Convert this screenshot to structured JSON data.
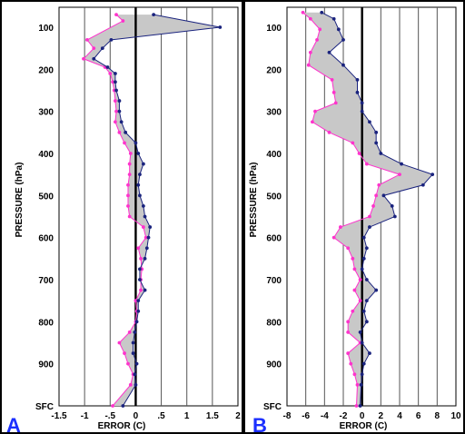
{
  "colors": {
    "series_magenta": "#ff33cc",
    "series_blue": "#1a237e",
    "fill": "#c8c8c8",
    "letter": "#1b2fff"
  },
  "chart_data": [
    {
      "panel_label": "A",
      "type": "line",
      "orientation": "vertical-profile",
      "xlabel": "ERROR (C)",
      "ylabel": "PRESSURE (hPa)",
      "xlim": [
        -1.5,
        2
      ],
      "ylim": [
        100,
        1000
      ],
      "y_reversed": true,
      "xticks": [
        "-1.5",
        "-1",
        "-.5",
        "0",
        ".5",
        "1",
        "1.5",
        "2"
      ],
      "yticks": [
        "100",
        "200",
        "300",
        "400",
        "500",
        "600",
        "700",
        "800",
        "900",
        "SFC"
      ],
      "grid": "vertical",
      "zero_line": true,
      "series": [
        {
          "color": "magenta",
          "y": [
            70,
            85,
            130,
            150,
            175,
            195,
            210,
            230,
            250,
            275,
            300,
            325,
            350,
            375,
            400,
            425,
            450,
            475,
            500,
            525,
            550,
            575,
            600,
            625,
            650,
            675,
            700,
            725,
            750,
            775,
            800,
            825,
            850,
            875,
            900,
            925,
            950,
            1000
          ],
          "x": [
            -0.38,
            -0.25,
            -0.95,
            -0.82,
            -1.02,
            -0.6,
            -0.5,
            -0.45,
            -0.42,
            -0.4,
            -0.38,
            -0.4,
            -0.32,
            -0.22,
            -0.1,
            -0.12,
            -0.12,
            -0.15,
            -0.15,
            -0.15,
            -0.12,
            0.15,
            0.2,
            0.05,
            0.1,
            0.12,
            0.1,
            0.1,
            0.0,
            0.02,
            0.0,
            -0.12,
            -0.32,
            -0.22,
            -0.15,
            -0.05,
            -0.1,
            -0.45
          ]
        },
        {
          "color": "blue",
          "y": [
            70,
            100,
            130,
            150,
            175,
            195,
            210,
            230,
            250,
            275,
            300,
            325,
            350,
            375,
            400,
            425,
            450,
            475,
            500,
            525,
            550,
            575,
            600,
            625,
            650,
            675,
            700,
            725,
            750,
            775,
            800,
            825,
            850,
            875,
            900,
            925,
            950,
            1000
          ],
          "x": [
            0.35,
            1.65,
            -0.48,
            -0.65,
            -0.82,
            -0.55,
            -0.4,
            -0.4,
            -0.38,
            -0.32,
            -0.32,
            -0.28,
            -0.2,
            0.0,
            0.05,
            0.15,
            0.08,
            0.05,
            0.08,
            0.15,
            0.18,
            0.28,
            0.25,
            0.22,
            0.18,
            0.08,
            0.08,
            0.18,
            0.05,
            0.05,
            0.02,
            -0.02,
            -0.05,
            -0.05,
            0.02,
            -0.02,
            0.0,
            -0.25
          ]
        }
      ]
    },
    {
      "panel_label": "B",
      "type": "line",
      "orientation": "vertical-profile",
      "xlabel": "ERROR (C)",
      "ylabel": "PRESSURE (hPa)",
      "xlim": [
        -8,
        10
      ],
      "ylim": [
        100,
        1000
      ],
      "y_reversed": true,
      "xticks": [
        "-8",
        "-6",
        "-4",
        "-2",
        "0",
        "2",
        "4",
        "6",
        "8",
        "10"
      ],
      "yticks": [
        "100",
        "200",
        "300",
        "400",
        "500",
        "600",
        "700",
        "800",
        "900",
        "SFC"
      ],
      "grid": "vertical",
      "zero_line": true,
      "series": [
        {
          "color": "magenta",
          "y": [
            65,
            80,
            105,
            130,
            160,
            190,
            225,
            255,
            280,
            300,
            325,
            350,
            375,
            400,
            425,
            450,
            475,
            500,
            525,
            550,
            575,
            600,
            625,
            650,
            675,
            700,
            725,
            750,
            775,
            800,
            825,
            850,
            875,
            900,
            925,
            950,
            1000
          ],
          "x": [
            -6.3,
            -5.5,
            -4.5,
            -4.8,
            -5.5,
            -5.7,
            -3.2,
            -3.0,
            -2.8,
            -5.0,
            -5.3,
            -3.5,
            -1.0,
            -0.3,
            0.5,
            4.0,
            1.8,
            1.5,
            1.2,
            0.8,
            -2.3,
            -3.0,
            -1.5,
            -1.0,
            -0.8,
            -0.2,
            -0.8,
            -0.2,
            -1.0,
            -1.5,
            -1.5,
            -0.2,
            -1.5,
            -1.2,
            -0.8,
            -0.5,
            -0.6
          ]
        },
        {
          "color": "blue",
          "y": [
            65,
            80,
            105,
            130,
            160,
            190,
            225,
            255,
            280,
            300,
            325,
            350,
            375,
            400,
            425,
            450,
            475,
            500,
            525,
            550,
            575,
            600,
            625,
            650,
            675,
            700,
            725,
            750,
            775,
            800,
            825,
            850,
            875,
            900,
            925,
            950,
            1000
          ],
          "x": [
            -4.3,
            -3.0,
            -2.5,
            -2.0,
            -3.5,
            -2.0,
            -0.5,
            -0.5,
            0.0,
            0.0,
            0.8,
            1.5,
            1.5,
            2.0,
            4.2,
            7.5,
            6.5,
            2.3,
            3.2,
            3.5,
            0.8,
            0.2,
            0.5,
            0.2,
            0.0,
            0.5,
            1.5,
            0.5,
            0.2,
            0.5,
            -0.2,
            0.0,
            0.8,
            0.2,
            0.0,
            -0.1,
            -0.2
          ]
        }
      ]
    }
  ]
}
